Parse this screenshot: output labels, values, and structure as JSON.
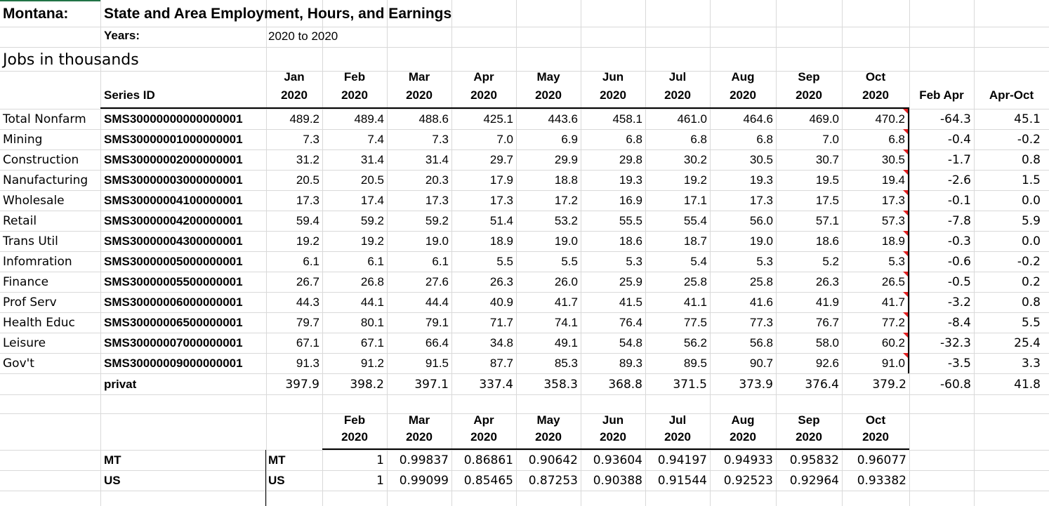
{
  "header": {
    "state": "Montana:",
    "title": "State and Area Employment, Hours, and Earnings",
    "years_label": "Years:",
    "years_value": "2020 to 2020",
    "units": "Jobs in thousands"
  },
  "table": {
    "series_id_label": "Series ID",
    "months": [
      {
        "m": "Jan",
        "y": "2020"
      },
      {
        "m": "Feb",
        "y": "2020"
      },
      {
        "m": "Mar",
        "y": "2020"
      },
      {
        "m": "Apr",
        "y": "2020"
      },
      {
        "m": "May",
        "y": "2020"
      },
      {
        "m": "Jun",
        "y": "2020"
      },
      {
        "m": "Jul",
        "y": "2020"
      },
      {
        "m": "Aug",
        "y": "2020"
      },
      {
        "m": "Sep",
        "y": "2020"
      },
      {
        "m": "Oct",
        "y": "2020"
      }
    ],
    "change_headers": [
      "Feb Apr",
      "Apr-Oct"
    ],
    "rows": [
      {
        "name": "Total Nonfarm",
        "id": "SMS30000000000000001",
        "vals": [
          "489.2",
          "489.4",
          "488.6",
          "425.1",
          "443.6",
          "458.1",
          "461.0",
          "464.6",
          "469.0",
          "470.2"
        ],
        "chg": [
          "-64.3",
          "45.1"
        ]
      },
      {
        "name": "Mining",
        "id": "SMS30000001000000001",
        "vals": [
          "7.3",
          "7.4",
          "7.3",
          "7.0",
          "6.9",
          "6.8",
          "6.8",
          "6.8",
          "7.0",
          "6.8"
        ],
        "chg": [
          "-0.4",
          "-0.2"
        ]
      },
      {
        "name": "Construction",
        "id": "SMS30000002000000001",
        "vals": [
          "31.2",
          "31.4",
          "31.4",
          "29.7",
          "29.9",
          "29.8",
          "30.2",
          "30.5",
          "30.7",
          "30.5"
        ],
        "chg": [
          "-1.7",
          "0.8"
        ]
      },
      {
        "name": "Nanufacturing",
        "id": "SMS30000003000000001",
        "vals": [
          "20.5",
          "20.5",
          "20.3",
          "17.9",
          "18.8",
          "19.3",
          "19.2",
          "19.3",
          "19.5",
          "19.4"
        ],
        "chg": [
          "-2.6",
          "1.5"
        ]
      },
      {
        "name": "Wholesale",
        "id": "SMS30000004100000001",
        "vals": [
          "17.3",
          "17.4",
          "17.3",
          "17.3",
          "17.2",
          "16.9",
          "17.1",
          "17.3",
          "17.5",
          "17.3"
        ],
        "chg": [
          "-0.1",
          "0.0"
        ]
      },
      {
        "name": "Retail",
        "id": "SMS30000004200000001",
        "vals": [
          "59.4",
          "59.2",
          "59.2",
          "51.4",
          "53.2",
          "55.5",
          "55.4",
          "56.0",
          "57.1",
          "57.3"
        ],
        "chg": [
          "-7.8",
          "5.9"
        ]
      },
      {
        "name": "Trans Util",
        "id": "SMS30000004300000001",
        "vals": [
          "19.2",
          "19.2",
          "19.0",
          "18.9",
          "19.0",
          "18.6",
          "18.7",
          "19.0",
          "18.6",
          "18.9"
        ],
        "chg": [
          "-0.3",
          "0.0"
        ]
      },
      {
        "name": "Infomration",
        "id": "SMS30000005000000001",
        "vals": [
          "6.1",
          "6.1",
          "6.1",
          "5.5",
          "5.5",
          "5.3",
          "5.4",
          "5.3",
          "5.2",
          "5.3"
        ],
        "chg": [
          "-0.6",
          "-0.2"
        ]
      },
      {
        "name": "Finance",
        "id": "SMS30000005500000001",
        "vals": [
          "26.7",
          "26.8",
          "27.6",
          "26.3",
          "26.0",
          "25.9",
          "25.8",
          "25.8",
          "26.3",
          "26.5"
        ],
        "chg": [
          "-0.5",
          "0.2"
        ]
      },
      {
        "name": "Prof Serv",
        "id": "SMS30000006000000001",
        "vals": [
          "44.3",
          "44.1",
          "44.4",
          "40.9",
          "41.7",
          "41.5",
          "41.1",
          "41.6",
          "41.9",
          "41.7"
        ],
        "chg": [
          "-3.2",
          "0.8"
        ]
      },
      {
        "name": "Health Educ",
        "id": "SMS30000006500000001",
        "vals": [
          "79.7",
          "80.1",
          "79.1",
          "71.7",
          "74.1",
          "76.4",
          "77.5",
          "77.3",
          "76.7",
          "77.2"
        ],
        "chg": [
          "-8.4",
          "5.5"
        ]
      },
      {
        "name": "Leisure",
        "id": "SMS30000007000000001",
        "vals": [
          "67.1",
          "67.1",
          "66.4",
          "34.8",
          "49.1",
          "54.8",
          "56.2",
          "56.8",
          "58.0",
          "60.2"
        ],
        "chg": [
          "-32.3",
          "25.4"
        ]
      },
      {
        "name": "Gov't",
        "id": "SMS30000009000000001",
        "vals": [
          "91.3",
          "91.2",
          "91.5",
          "87.7",
          "85.3",
          "89.3",
          "89.5",
          "90.7",
          "92.6",
          "91.0"
        ],
        "chg": [
          "-3.5",
          "3.3"
        ]
      }
    ],
    "privat": {
      "label": "privat",
      "vals": [
        "397.9",
        "398.2",
        "397.1",
        "337.4",
        "358.3",
        "368.8",
        "371.5",
        "373.9",
        "376.4",
        "379.2"
      ],
      "chg": [
        "-60.8",
        "41.8"
      ]
    }
  },
  "ratio_table": {
    "months": [
      {
        "m": "Feb",
        "y": "2020"
      },
      {
        "m": "Mar",
        "y": "2020"
      },
      {
        "m": "Apr",
        "y": "2020"
      },
      {
        "m": "May",
        "y": "2020"
      },
      {
        "m": "Jun",
        "y": "2020"
      },
      {
        "m": "Jul",
        "y": "2020"
      },
      {
        "m": "Aug",
        "y": "2020"
      },
      {
        "m": "Sep",
        "y": "2020"
      },
      {
        "m": "Oct",
        "y": "2020"
      }
    ],
    "rows": [
      {
        "label1": "MT",
        "label2": "MT",
        "vals": [
          "1",
          "0.99837",
          "0.86861",
          "0.90642",
          "0.93604",
          "0.94197",
          "0.94933",
          "0.95832",
          "0.96077"
        ]
      },
      {
        "label1": "US",
        "label2": "US",
        "vals": [
          "1",
          "0.99099",
          "0.85465",
          "0.87253",
          "0.90388",
          "0.91544",
          "0.92523",
          "0.92964",
          "0.93382"
        ]
      }
    ]
  }
}
